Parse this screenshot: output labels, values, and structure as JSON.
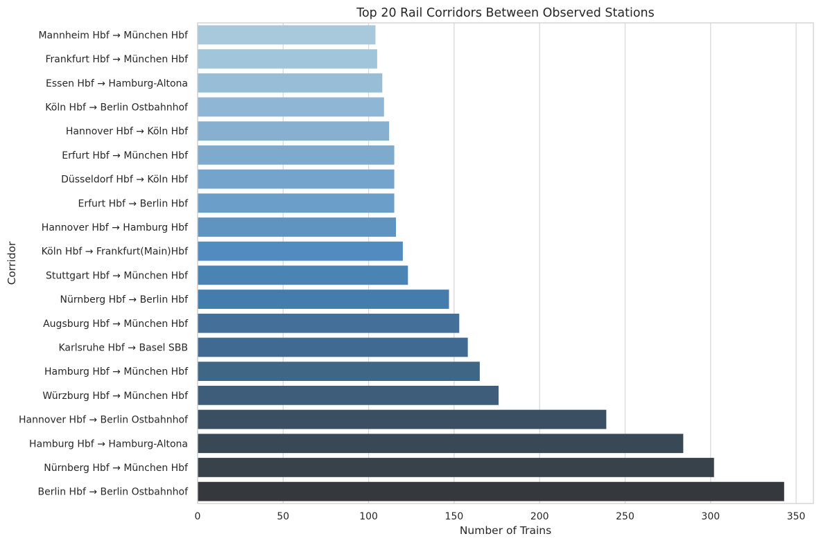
{
  "chart_data": {
    "type": "bar",
    "orientation": "horizontal",
    "title": "Top 20 Rail Corridors Between Observed Stations",
    "xlabel": "Number of Trains",
    "ylabel": "Corridor",
    "xlim": [
      0,
      360
    ],
    "xticks": [
      0,
      50,
      100,
      150,
      200,
      250,
      300,
      350
    ],
    "grid": "vertical",
    "palette": "Blues_d (light blue to dark slate)",
    "categories": [
      "Mannheim Hbf → München Hbf",
      "Frankfurt Hbf → München Hbf",
      "Essen Hbf → Hamburg-Altona",
      "Köln Hbf → Berlin Ostbahnhof",
      "Hannover Hbf → Köln Hbf",
      "Erfurt Hbf → München Hbf",
      "Düsseldorf Hbf → Köln Hbf",
      "Erfurt Hbf → Berlin Hbf",
      "Hannover Hbf → Hamburg Hbf",
      "Köln Hbf → Frankfurt(Main)Hbf",
      "Stuttgart Hbf → München Hbf",
      "Nürnberg Hbf → Berlin Hbf",
      "Augsburg Hbf → München Hbf",
      "Karlsruhe Hbf → Basel SBB",
      "Hamburg Hbf → München Hbf",
      "Würzburg Hbf → München Hbf",
      "Hannover Hbf → Berlin Ostbahnhof",
      "Hamburg Hbf → Hamburg-Altona",
      "Nürnberg Hbf → München Hbf",
      "Berlin Hbf → Berlin Ostbahnhof"
    ],
    "values": [
      104,
      105,
      108,
      109,
      112,
      115,
      115,
      115,
      116,
      120,
      123,
      147,
      153,
      158,
      165,
      176,
      239,
      284,
      302,
      343
    ],
    "colors": [
      "#a8c9dc",
      "#a1c5db",
      "#98bdd6",
      "#8fb6d4",
      "#86afd0",
      "#7eaace",
      "#74a3cb",
      "#6b9ec8",
      "#5f93c0",
      "#528bbf",
      "#4a84b4",
      "#447cae",
      "#436f98",
      "#416a93",
      "#3f6685",
      "#3d5d7a",
      "#3b4f63",
      "#394855",
      "#37424b",
      "#35393e"
    ]
  }
}
